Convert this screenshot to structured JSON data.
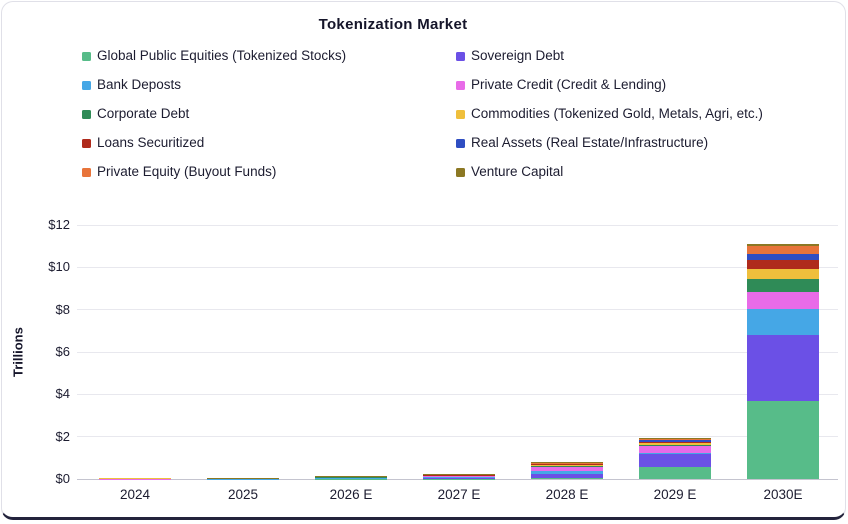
{
  "title": "Tokenization Market",
  "chart_data": {
    "type": "bar",
    "stacked": true,
    "title": "Tokenization Market",
    "ylabel": "Trillions",
    "grid": true,
    "legend_position": "top, two columns, row-major order",
    "ylim": [
      0,
      12
    ],
    "yticks": [
      {
        "value": 12,
        "label": "$12"
      },
      {
        "value": 10,
        "label": "$10"
      },
      {
        "value": 8,
        "label": "$8"
      },
      {
        "value": 6,
        "label": "$6"
      },
      {
        "value": 4,
        "label": "$4"
      },
      {
        "value": 2,
        "label": "$2"
      },
      {
        "value": 0,
        "label": "$0"
      }
    ],
    "categories": [
      "2024",
      "2025",
      "2026 E",
      "2027 E",
      "2028 E",
      "2029 E",
      "2030E"
    ],
    "units": "trillions USD",
    "series": [
      {
        "name": "Global Public Equities (Tokenized Stocks)",
        "color": "#57bc89",
        "values": [
          0.002,
          0.004,
          0.01,
          0.02,
          0.05,
          0.55,
          3.7
        ]
      },
      {
        "name": "Sovereign Debt",
        "color": "#6b50e6",
        "values": [
          0.002,
          0.005,
          0.05,
          0.07,
          0.2,
          0.62,
          3.1
        ]
      },
      {
        "name": "Bank Deposts",
        "color": "#45a7e6",
        "values": [
          0.01,
          0.015,
          0.01,
          0.02,
          0.15,
          0.05,
          1.25
        ]
      },
      {
        "name": "Private Credit (Credit & Lending)",
        "color": "#e86be8",
        "values": [
          0.005,
          0.01,
          0.035,
          0.06,
          0.15,
          0.33,
          0.8
        ]
      },
      {
        "name": "Corporate Debt",
        "color": "#2f8b57",
        "values": [
          0.002,
          0.003,
          0.005,
          0.01,
          0.05,
          0.08,
          0.6
        ]
      },
      {
        "name": "Commodities (Tokenized Gold, Metals, Agri, etc.)",
        "color": "#efbf3c",
        "values": [
          0.01,
          0.02,
          0.01,
          0.02,
          0.06,
          0.1,
          0.48
        ]
      },
      {
        "name": "Loans Securitized",
        "color": "#af2a1c",
        "values": [
          0.002,
          0.002,
          0.003,
          0.005,
          0.03,
          0.03,
          0.43
        ]
      },
      {
        "name": "Real Assets (Real Estate/Infrastructure)",
        "color": "#2f4ec2",
        "values": [
          0.003,
          0.005,
          0.01,
          0.02,
          0.06,
          0.1,
          0.28
        ]
      },
      {
        "name": "Private Equity (Buyout Funds)",
        "color": "#e8743a",
        "values": [
          0.001,
          0.002,
          0.002,
          0.005,
          0.02,
          0.03,
          0.37
        ]
      },
      {
        "name": "Venture Capital",
        "color": "#8c7823",
        "values": [
          0.003,
          0.004,
          0.005,
          0.01,
          0.03,
          0.06,
          0.1
        ]
      }
    ]
  }
}
